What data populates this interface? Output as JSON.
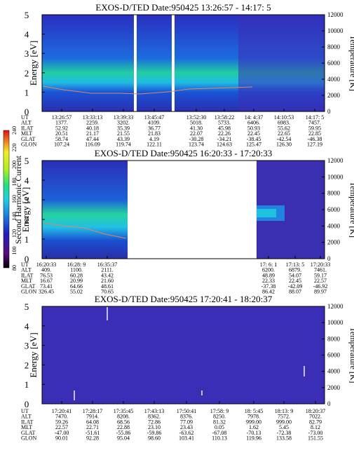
{
  "panels": [
    {
      "title": "EXOS-D/TED   Date:950425   13:26:57 - 14:17: 5",
      "y_ticks": [
        "0",
        "1",
        "2",
        "3",
        "4",
        "5"
      ],
      "temp_ticks": [
        "0",
        "2000",
        "4000",
        "6000",
        "8000",
        "10000",
        "12000"
      ],
      "ylabel": "Energy [eV]",
      "y2label": "Temperature [K]",
      "row_labels": [
        "UT",
        "ALT",
        "ILAT",
        "MLT",
        "GLAT",
        "GLON"
      ],
      "columns": [
        [
          "13:26:57",
          "1377.",
          "52.92",
          "20.51",
          "58.74",
          "107.24"
        ],
        [
          "13:33:13",
          "2259.",
          "40.18",
          "21.17",
          "47.44",
          "116.09"
        ],
        [
          "13:39:33",
          "3202.",
          "35.39",
          "21.55",
          "43.39",
          "119.74"
        ],
        [
          "13:45:47",
          "4109.",
          "36.77",
          "21.83",
          "4.19",
          "122.11"
        ],
        [
          "13:52:30",
          "5018.",
          "41.30",
          "22.07",
          "-30.28",
          "123.74"
        ],
        [
          "13:58:22",
          "5733.",
          "45.98",
          "22.26",
          "-34.21",
          "124.63"
        ],
        [
          "14: 4:37",
          "6406.",
          "50.93",
          "22.45",
          "-38.45",
          "125.47"
        ],
        [
          "14:10:53",
          "6983.",
          "55.62",
          "22.65",
          "-42.54",
          "126.30"
        ],
        [
          "14:17: 5",
          "7457.",
          "59.95",
          "22.85",
          "-46.38",
          "127.19"
        ]
      ]
    },
    {
      "title": "EXOS-D/TED   Date:950425   16:20:33 - 17:20:33",
      "y_ticks": [
        "0",
        "1",
        "2",
        "3",
        "4",
        "5"
      ],
      "temp_ticks": [
        "0",
        "2000",
        "4000",
        "6000",
        "8000",
        "10000",
        "12000"
      ],
      "ylabel": "Energy [eV]",
      "y2label": "Temperature [K]",
      "row_labels": [
        "UT",
        "ALT",
        "ILAT",
        "MLT",
        "GLAT",
        "GLON"
      ],
      "columns": [
        [
          "16:20:33",
          "409.",
          "76.53",
          "16.67",
          "73.41",
          "326.45"
        ],
        [
          "16:28: 9",
          "1100.",
          "60.28",
          "20.99",
          "64.66",
          "55.02"
        ],
        [
          "16:35:37",
          "2111.",
          "43.42",
          "21.60",
          "48.61",
          "70.65"
        ],
        [
          "17: 6: 1",
          "6200.",
          "48.89",
          "22.33",
          "-37.38",
          "86.42"
        ],
        [
          "17:13: 5",
          "6879.",
          "54.07",
          "22.45",
          "-42.09",
          "88.07"
        ],
        [
          "17:20:33",
          "7461.",
          "59.17",
          "22.57",
          "-46.92",
          "89.97"
        ]
      ]
    },
    {
      "title": "EXOS-D/TED   Date:950425   17:20:41 - 18:20:37",
      "y_ticks": [
        "0",
        "1",
        "2",
        "3",
        "4",
        "5"
      ],
      "temp_ticks": [
        "0",
        "2000",
        "4000",
        "6000",
        "8000",
        "10000",
        "12000"
      ],
      "ylabel": "Energy [eV]",
      "y2label": "Temperature [K]",
      "row_labels": [
        "UT",
        "ALT",
        "ILAT",
        "MLT",
        "GLAT",
        "GLON"
      ],
      "columns": [
        [
          "17:20:41",
          "7470.",
          "59.26",
          "22.57",
          "-47.00",
          "90.01"
        ],
        [
          "17:28:17",
          "7914.",
          "64.08",
          "22.71",
          "-51.61",
          "92.28"
        ],
        [
          "17:35:45",
          "8208.",
          "68.56",
          "22.88",
          "-55.86",
          "95.04"
        ],
        [
          "17:43:13",
          "8362.",
          "72.86",
          "23.10",
          "-59.86",
          "98.60"
        ],
        [
          "17:50:41",
          "8376.",
          "77.09",
          "23.43",
          "-63.62",
          "103.41"
        ],
        [
          "17:58: 9",
          "8250.",
          "81.32",
          "0.05",
          "-67.08",
          "110.13"
        ],
        [
          "18: 5:45",
          "7978.",
          "999.00",
          "1.62",
          "-70.13",
          "119.96"
        ],
        [
          "18:13: 9",
          "7572.",
          "999.00",
          "5.45",
          "-72.38",
          "133.58"
        ],
        [
          "18:20:37",
          "7022.",
          "82.79",
          "8.12",
          "-73.00",
          "151.55"
        ]
      ]
    }
  ],
  "colorbar": {
    "label": "Second Harmonic Current",
    "ticks": [
      "80",
      "100",
      "120",
      "140",
      "160",
      "180",
      "200",
      "220",
      "240"
    ]
  },
  "chart_data": {
    "type": "heatmap",
    "panels": [
      {
        "title": "EXOS-D/TED   Date:950425   13:26:57 - 14:17: 5",
        "x_label": "UT",
        "ylabel": "Energy [eV]",
        "ylim": [
          0,
          5
        ],
        "y2label": "Temperature [K]",
        "y2lim": [
          0,
          12000
        ],
        "data_gaps": [
          [
            "13:43:00",
            "13:44:00"
          ],
          [
            "13:49:30",
            "13:50:30"
          ]
        ]
      },
      {
        "title": "EXOS-D/TED   Date:950425   16:20:33 - 17:20:33",
        "x_label": "UT",
        "ylabel": "Energy [eV]",
        "ylim": [
          0,
          5
        ],
        "y2label": "Temperature [K]",
        "y2lim": [
          0,
          12000
        ],
        "data_gaps": [
          [
            "16:39:00",
            "17:06:00"
          ]
        ]
      },
      {
        "title": "EXOS-D/TED   Date:950425   17:20:41 - 18:20:37",
        "x_label": "UT",
        "ylabel": "Energy [eV]",
        "ylim": [
          0,
          5
        ],
        "y2label": "Temperature [K]",
        "y2lim": [
          0,
          12000
        ],
        "data_gaps": []
      }
    ],
    "colorbar": {
      "label": "Second Harmonic Current",
      "range": [
        80,
        240
      ]
    }
  }
}
